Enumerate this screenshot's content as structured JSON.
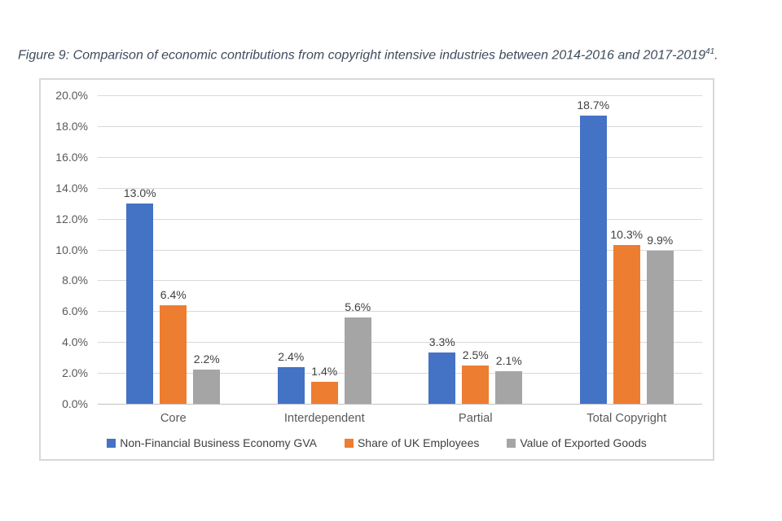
{
  "figure": {
    "title": "Figure 9: Comparison of economic contributions from copyright intensive industries between 2014-2016 and 2017-2019",
    "title_superscript": "41",
    "title_period": "."
  },
  "colors": {
    "series_blue": "#4472C4",
    "series_orange": "#ED7D31",
    "series_gray": "#A5A5A5",
    "gridline": "#D9D9D9",
    "chart_border": "#D8D8D8",
    "axis_text": "#595959",
    "value_label_text": "#404040",
    "title_text": "#3E4C5E"
  },
  "chart_data": {
    "type": "bar",
    "title": "",
    "categories": [
      "Core",
      "Interdependent",
      "Partial",
      "Total Copyright"
    ],
    "series": [
      {
        "name": "Non-Financial Business Economy GVA",
        "color": "#4472C4",
        "values": [
          13.0,
          2.4,
          3.3,
          18.7
        ]
      },
      {
        "name": "Share of UK Employees",
        "color": "#ED7D31",
        "values": [
          6.4,
          1.4,
          2.5,
          10.3
        ]
      },
      {
        "name": "Value of Exported Goods",
        "color": "#A5A5A5",
        "values": [
          2.2,
          5.6,
          2.1,
          9.9
        ]
      }
    ],
    "value_labels": [
      [
        "13.0%",
        "2.4%",
        "3.3%",
        "18.7%"
      ],
      [
        "6.4%",
        "1.4%",
        "2.5%",
        "10.3%"
      ],
      [
        "2.2%",
        "5.6%",
        "2.1%",
        "9.9%"
      ]
    ],
    "xlabel": "",
    "ylabel": "",
    "ylim": [
      0,
      20
    ],
    "ytick_step": 2,
    "ytick_labels": [
      "0.0%",
      "2.0%",
      "4.0%",
      "6.0%",
      "8.0%",
      "10.0%",
      "12.0%",
      "14.0%",
      "16.0%",
      "18.0%",
      "20.0%"
    ],
    "grid": true,
    "legend_position": "bottom"
  }
}
